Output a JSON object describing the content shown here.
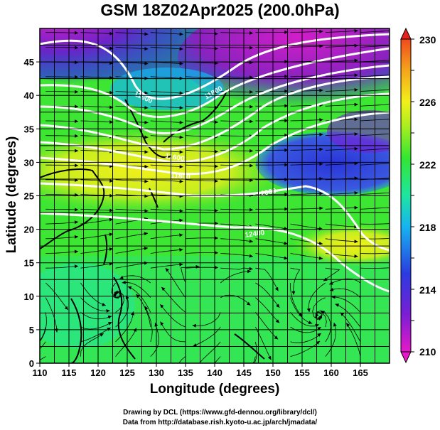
{
  "title": "GSM 18Z02Apr2025 (200.0hPa)",
  "xlabel": "Longitude (degrees)",
  "ylabel": "Latitude  (degrees)",
  "credit_line1": "Drawing by DCL (https://www.gfd-dennou.org/library/dcl/)",
  "credit_line2": "Data from http://database.rish.kyoto-u.ac.jp/arch/jmadata/",
  "x_ticks": [
    "110",
    "115",
    "120",
    "125",
    "130",
    "135",
    "140",
    "145",
    "150",
    "155",
    "160",
    "165"
  ],
  "y_ticks": [
    "0",
    "5",
    "10",
    "15",
    "20",
    "25",
    "30",
    "35",
    "40",
    "45"
  ],
  "colorbar": {
    "labels": [
      "210",
      "214",
      "218",
      "222",
      "226",
      "230"
    ],
    "stops": [
      "#e619c8",
      "#7a1ed6",
      "#2a3be0",
      "#16b4f0",
      "#1ee6a0",
      "#32e632",
      "#a8ee1e",
      "#f2f01a",
      "#f5a51a",
      "#f04a1e"
    ]
  },
  "contour_labels": [
    "11600",
    "11600",
    "11800",
    "11800",
    "12000",
    "12400"
  ],
  "colors": {
    "frame": "#000000",
    "contour": "#ffffff",
    "coast": "#000000"
  }
}
